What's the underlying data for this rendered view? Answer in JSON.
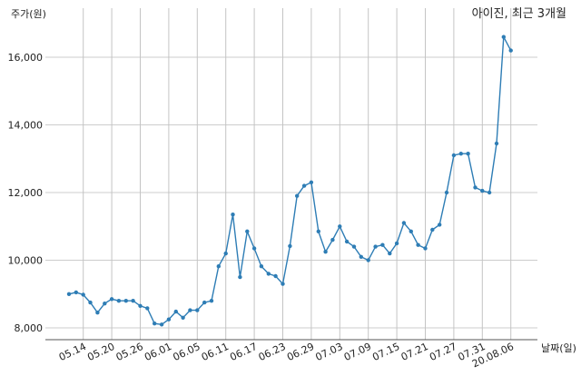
{
  "chart_data": {
    "type": "line",
    "title": "아이진, 최근 3개월",
    "ylabel": "주가(원)",
    "xlabel": "날짜(일)",
    "ylim": [
      7650,
      17300
    ],
    "y_ticks": [
      8000,
      10000,
      12000,
      14000,
      16000
    ],
    "y_tick_labels": [
      "8,000",
      "10,000",
      "12,000",
      "14,000",
      "16,000"
    ],
    "x_tick_labels": [
      "05.14",
      "05.20",
      "05.26",
      "06.01",
      "06.05",
      "06.11",
      "06.17",
      "06.23",
      "06.29",
      "07.03",
      "07.09",
      "07.15",
      "07.21",
      "07.27",
      "07.31",
      "20.08.06"
    ],
    "x_tick_index": [
      2,
      6,
      10,
      14,
      18,
      22,
      26,
      30,
      34,
      38,
      42,
      46,
      50,
      54,
      58,
      62
    ],
    "grid": "vertical",
    "series_color": "#2e7db5",
    "values": [
      9000,
      9050,
      8980,
      8750,
      8450,
      8720,
      8850,
      8800,
      8800,
      8800,
      8650,
      8580,
      8130,
      8100,
      8250,
      8480,
      8300,
      8520,
      8520,
      8750,
      8800,
      9820,
      10200,
      11350,
      9500,
      10850,
      10350,
      9820,
      9600,
      9530,
      9300,
      10420,
      11900,
      12200,
      12300,
      10850,
      10250,
      10600,
      11000,
      10550,
      10400,
      10100,
      10000,
      10400,
      10450,
      10200,
      10500,
      11100,
      10850,
      10450,
      10350,
      10900,
      11050,
      12000,
      13100,
      13150,
      13150,
      12150,
      12050,
      12000,
      13450,
      16600,
      16200
    ]
  }
}
